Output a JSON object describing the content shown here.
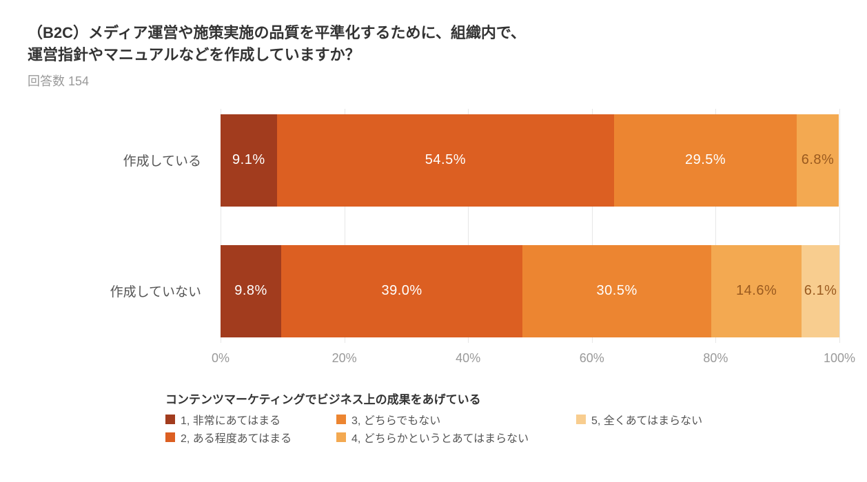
{
  "title_line1": "（B2C）メディア運営や施策実施の品質を平準化するために、組織内で、",
  "title_line2": "運営指針やマニュアルなどを作成していますか？",
  "title_fontsize": 22,
  "subtitle": "回答数 154",
  "subtitle_fontsize": 18,
  "chart": {
    "type": "stacked-bar-horizontal",
    "xlim": [
      0,
      100
    ],
    "xtick_step": 20,
    "xtick_labels": [
      "0%",
      "20%",
      "40%",
      "60%",
      "80%",
      "100%"
    ],
    "grid_color": "#e6e6e6",
    "background_color": "#ffffff",
    "ylabel_fontsize": 19,
    "value_label_fontsize": 20,
    "categories": [
      {
        "label": "作成している",
        "segments": [
          {
            "value": 9.1,
            "display": "9.1%",
            "color": "#a23c1e",
            "text_color": "#ffffff"
          },
          {
            "value": 54.5,
            "display": "54.5%",
            "color": "#dc5f22",
            "text_color": "#ffffff"
          },
          {
            "value": 29.5,
            "display": "29.5%",
            "color": "#ec8531",
            "text_color": "#ffffff"
          },
          {
            "value": 6.8,
            "display": "6.8%",
            "color": "#f3a951",
            "text_color": "#9a5a1f"
          }
        ]
      },
      {
        "label": "作成していない",
        "segments": [
          {
            "value": 9.8,
            "display": "9.8%",
            "color": "#a23c1e",
            "text_color": "#ffffff"
          },
          {
            "value": 39.0,
            "display": "39.0%",
            "color": "#dc5f22",
            "text_color": "#ffffff"
          },
          {
            "value": 30.5,
            "display": "30.5%",
            "color": "#ec8531",
            "text_color": "#ffffff"
          },
          {
            "value": 14.6,
            "display": "14.6%",
            "color": "#f3a951",
            "text_color": "#9a5a1f"
          },
          {
            "value": 6.1,
            "display": "6.1%",
            "color": "#f8cd8f",
            "text_color": "#9a5a1f"
          }
        ]
      }
    ]
  },
  "legend": {
    "title": "コンテンツマーケティングでビジネス上の成果をあげている",
    "title_fontsize": 17,
    "item_fontsize": 16,
    "items": [
      {
        "color": "#a23c1e",
        "label": "1, 非常にあてはまる"
      },
      {
        "color": "#ec8531",
        "label": "3, どちらでもない"
      },
      {
        "color": "#f8cd8f",
        "label": "5, 全くあてはまらない"
      },
      {
        "color": "#dc5f22",
        "label": "2, ある程度あてはまる"
      },
      {
        "color": "#f3a951",
        "label": "4, どちらかというとあてはまらない"
      }
    ]
  }
}
